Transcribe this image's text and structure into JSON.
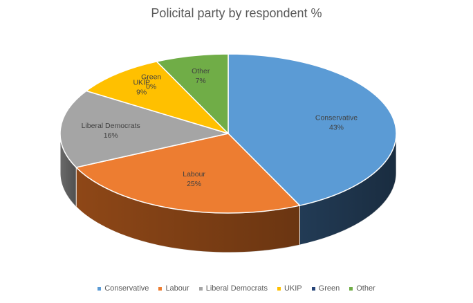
{
  "chart_data": {
    "type": "pie",
    "title": "Policital party by respondent %",
    "slices": [
      {
        "name": "Conservative",
        "value": 43,
        "label": "43%",
        "color": "#5B9BD5",
        "side_color": "#223B55"
      },
      {
        "name": "Labour",
        "value": 25,
        "label": "25%",
        "color": "#ED7D31",
        "side_color": "#8E4717"
      },
      {
        "name": "Liberal Democrats",
        "value": 16,
        "label": "16%",
        "color": "#A5A5A5",
        "side_color": "#6A6A6A"
      },
      {
        "name": "UKIP",
        "value": 9,
        "label": "9%",
        "color": "#FFC000",
        "side_color": "#A07800"
      },
      {
        "name": "Green",
        "value": 0,
        "label": "0%",
        "color": "#264478",
        "side_color": "#1A2F54"
      },
      {
        "name": "Other",
        "value": 7,
        "label": "7%",
        "color": "#70AD47",
        "side_color": "#466D2C"
      }
    ],
    "legend_position": "bottom",
    "style": "3d-pie"
  }
}
